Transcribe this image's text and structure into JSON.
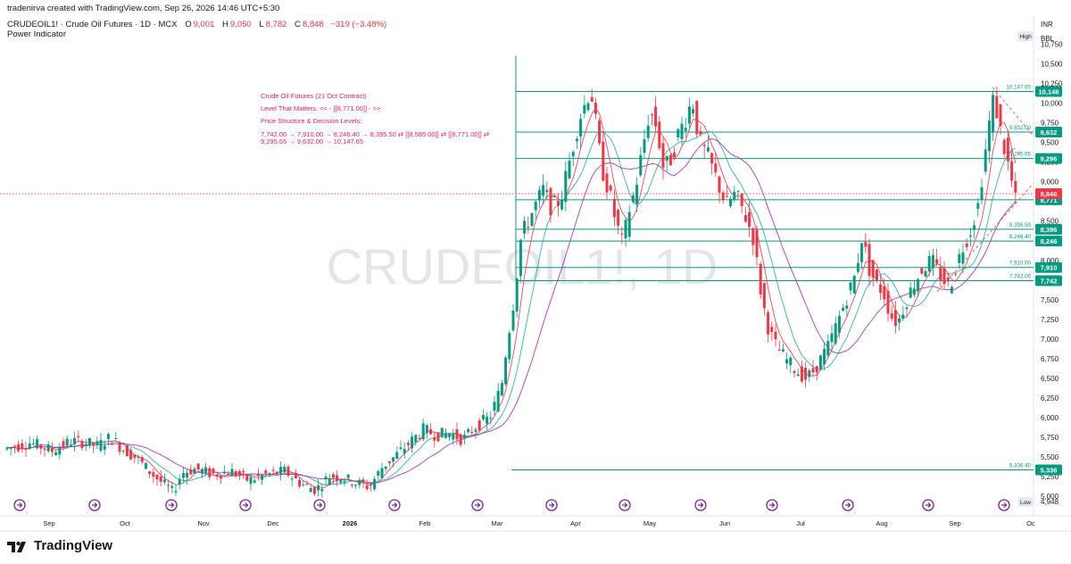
{
  "header": {
    "credit": "tradenirva created with TradingView.com, Sep 26, 2026 14:46 UTC+5:30",
    "symbol": "CRUDEOIL1! · Crude Oil Futures · 1D · MCX",
    "ohlc": {
      "o_label": "O",
      "o": "9,001",
      "h_label": "H",
      "h": "9,050",
      "l_label": "L",
      "l": "8,782",
      "c_label": "C",
      "c": "8,848",
      "chg": "−319 (−3.48%)"
    },
    "indicator": "Power Indicator"
  },
  "watermark": "CRUDEOIL1!, 1D",
  "annotation": {
    "line1": "Crude Oil Futures (21 Oct Contract)",
    "line2": "Level That Matters: << - [[8,771.00]] - >>",
    "line3": "Price Structure & Decision Levels:",
    "line4": "7,742.00 → 7,910.00 → 8,246.40 → 8,395.50 ⇄ [[8,585.00]] ⇄ [[8,771.00]] ⇄",
    "line5": "9,295.65 → 9,632.00 → 10,147.65"
  },
  "footer": {
    "brand": "TradingView"
  },
  "colors": {
    "up": "#089981",
    "down": "#f23645",
    "level": "#089981",
    "ma_fast": "#f23645",
    "ma_mid": "#26a69a",
    "ma_slow": "#9c27b0",
    "current": "#f23645",
    "annotation": "#e91e63"
  },
  "chart_data": {
    "type": "candlestick",
    "currency": "INR",
    "unit": "BBL",
    "ylim": [
      4900,
      10800
    ],
    "y_ticks": [
      "10,750",
      "10,500",
      "10,250",
      "10,000",
      "9,750",
      "9,500",
      "9,250",
      "9,000",
      "8,750",
      "8,500",
      "8,250",
      "8,000",
      "7,750",
      "7,500",
      "7,250",
      "7,000",
      "6,750",
      "6,500",
      "6,250",
      "6,000",
      "5,750",
      "5,500",
      "5,250",
      "5,000"
    ],
    "x_ticks": [
      "Sep",
      "Oct",
      "Nov",
      "Dec",
      "2026",
      "Feb",
      "Mar",
      "Apr",
      "May",
      "Jun",
      "Jul",
      "Aug",
      "Sep",
      "Oc"
    ],
    "high_label": "High",
    "low_label": "Low",
    "low_value": "4,948",
    "levels": [
      {
        "value": 10147.65,
        "label": "10,147.65",
        "badge": "10,148"
      },
      {
        "value": 9632.0,
        "label": "9,632.00",
        "badge": "9,632"
      },
      {
        "value": 9295.65,
        "label": "9,295.65",
        "badge": "9,296"
      },
      {
        "value": 8771.0,
        "label": "",
        "badge": "8,771"
      },
      {
        "value": 8395.5,
        "label": "8,395.50",
        "badge": "8,396"
      },
      {
        "value": 8246.4,
        "label": "8,246.40",
        "badge": "8,246"
      },
      {
        "value": 7910.0,
        "label": "7,910.00",
        "badge": "7,910"
      },
      {
        "value": 7742.0,
        "label": "7,742.00",
        "badge": "7,742"
      },
      {
        "value": 5336.4,
        "label": "5,336.40",
        "badge": "5,336"
      }
    ],
    "current_price": {
      "value": 8848,
      "badge": "8,848"
    },
    "x_months": [
      {
        "m": "2025-08",
        "close": 5650
      },
      {
        "m": "2025-09",
        "close": 5680
      },
      {
        "m": "2025-10",
        "close": 5120
      },
      {
        "m": "2025-11",
        "close": 5380
      },
      {
        "m": "2025-12",
        "close": 5250
      },
      {
        "m": "2026-01",
        "close": 5460
      },
      {
        "m": "2026-02",
        "close": 5900
      },
      {
        "m": "2026-03",
        "close": 8500
      },
      {
        "m": "2026-04",
        "close": 8700
      },
      {
        "m": "2026-05",
        "close": 9300
      },
      {
        "m": "2026-06",
        "close": 7700
      },
      {
        "m": "2026-07",
        "close": 6900
      },
      {
        "m": "2026-08",
        "close": 7950
      },
      {
        "m": "2026-09",
        "close": 8848
      }
    ],
    "path": [
      [
        0,
        5600
      ],
      [
        30,
        5680
      ],
      [
        55,
        5580
      ],
      [
        75,
        5700
      ],
      [
        90,
        5690
      ],
      [
        105,
        5640
      ],
      [
        120,
        5750
      ],
      [
        132,
        5620
      ],
      [
        150,
        5480
      ],
      [
        165,
        5300
      ],
      [
        180,
        5150
      ],
      [
        190,
        5050
      ],
      [
        200,
        5300
      ],
      [
        215,
        5350
      ],
      [
        235,
        5280
      ],
      [
        255,
        5320
      ],
      [
        275,
        5200
      ],
      [
        295,
        5280
      ],
      [
        315,
        5320
      ],
      [
        335,
        5150
      ],
      [
        350,
        5080
      ],
      [
        365,
        5260
      ],
      [
        380,
        5240
      ],
      [
        395,
        5170
      ],
      [
        410,
        5120
      ],
      [
        425,
        5380
      ],
      [
        440,
        5520
      ],
      [
        455,
        5680
      ],
      [
        470,
        5850
      ],
      [
        485,
        5780
      ],
      [
        500,
        5800
      ],
      [
        515,
        5720
      ],
      [
        530,
        5900
      ],
      [
        545,
        6000
      ],
      [
        558,
        6400
      ],
      [
        565,
        7000
      ],
      [
        572,
        7500
      ],
      [
        580,
        8300
      ],
      [
        588,
        8500
      ],
      [
        596,
        8700
      ],
      [
        605,
        8900
      ],
      [
        615,
        8650
      ],
      [
        625,
        8800
      ],
      [
        635,
        9300
      ],
      [
        645,
        9800
      ],
      [
        652,
        10000
      ],
      [
        658,
        10200
      ],
      [
        664,
        9700
      ],
      [
        670,
        9200
      ],
      [
        678,
        8900
      ],
      [
        686,
        8500
      ],
      [
        694,
        8200
      ],
      [
        700,
        8600
      ],
      [
        708,
        8900
      ],
      [
        716,
        9400
      ],
      [
        724,
        9900
      ],
      [
        732,
        9700
      ],
      [
        740,
        9150
      ],
      [
        748,
        9300
      ],
      [
        756,
        9600
      ],
      [
        764,
        9800
      ],
      [
        772,
        10050
      ],
      [
        780,
        9500
      ],
      [
        790,
        9300
      ],
      [
        800,
        9000
      ],
      [
        810,
        8700
      ],
      [
        820,
        8850
      ],
      [
        830,
        8600
      ],
      [
        840,
        8300
      ],
      [
        850,
        7500
      ],
      [
        858,
        7100
      ],
      [
        866,
        6900
      ],
      [
        876,
        6750
      ],
      [
        888,
        6600
      ],
      [
        900,
        6500
      ],
      [
        908,
        6600
      ],
      [
        916,
        6750
      ],
      [
        924,
        6900
      ],
      [
        934,
        7200
      ],
      [
        944,
        7500
      ],
      [
        954,
        7800
      ],
      [
        962,
        8300
      ],
      [
        970,
        7900
      ],
      [
        978,
        7700
      ],
      [
        986,
        7600
      ],
      [
        994,
        7300
      ],
      [
        1002,
        7200
      ],
      [
        1010,
        7450
      ],
      [
        1020,
        7700
      ],
      [
        1030,
        7900
      ],
      [
        1040,
        8000
      ],
      [
        1050,
        7800
      ],
      [
        1060,
        7650
      ],
      [
        1068,
        7950
      ],
      [
        1076,
        8200
      ],
      [
        1084,
        8400
      ],
      [
        1092,
        8700
      ],
      [
        1098,
        9200
      ],
      [
        1104,
        9700
      ],
      [
        1110,
        10100
      ],
      [
        1116,
        9700
      ],
      [
        1122,
        9400
      ],
      [
        1128,
        9100
      ],
      [
        1134,
        8750
      ],
      [
        1140,
        8848
      ]
    ]
  }
}
